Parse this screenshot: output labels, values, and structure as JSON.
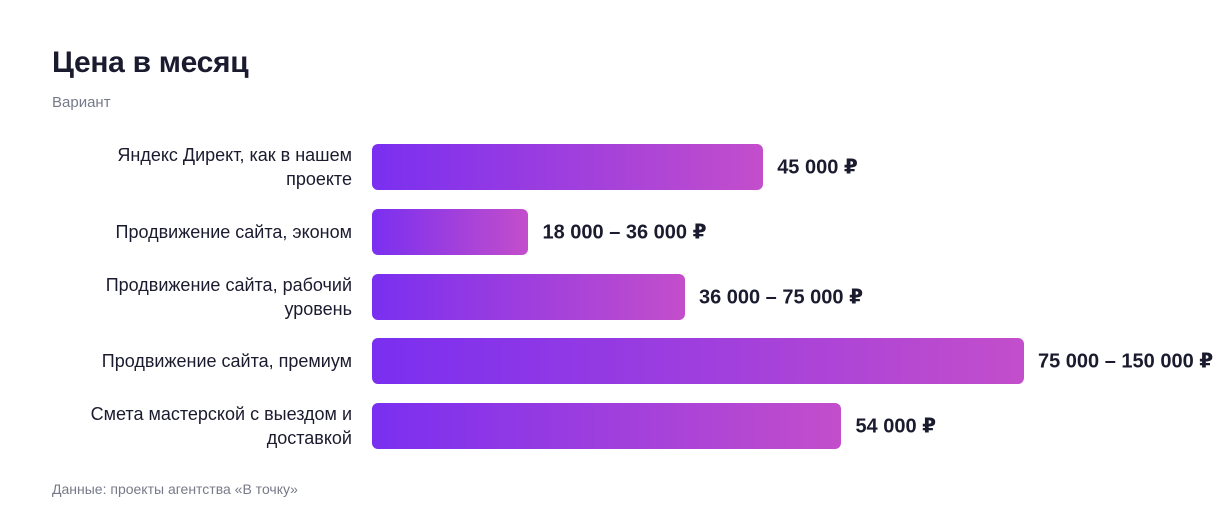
{
  "chart_data": {
    "type": "bar",
    "orientation": "horizontal",
    "title": "Цена в месяц",
    "subtitle": "Вариант",
    "source": "Данные: проекты агентства «В точку»",
    "categories": [
      "Яндекс Директ, как в нашем проекте",
      "Продвижение сайта, эконом",
      "Продвижение сайта, рабочий уровень",
      "Продвижение сайта, премиум",
      "Смета мастерской с выездом и доставкой"
    ],
    "values": [
      45000,
      18000,
      36000,
      75000,
      54000
    ],
    "value_labels": [
      "45 000 ₽",
      "18 000 – 36 000 ₽",
      "36 000 – 75 000 ₽",
      "75 000 – 150 000 ₽",
      "54 000 ₽"
    ],
    "color": [
      "#7a2ff0",
      "#c34ecb"
    ]
  }
}
